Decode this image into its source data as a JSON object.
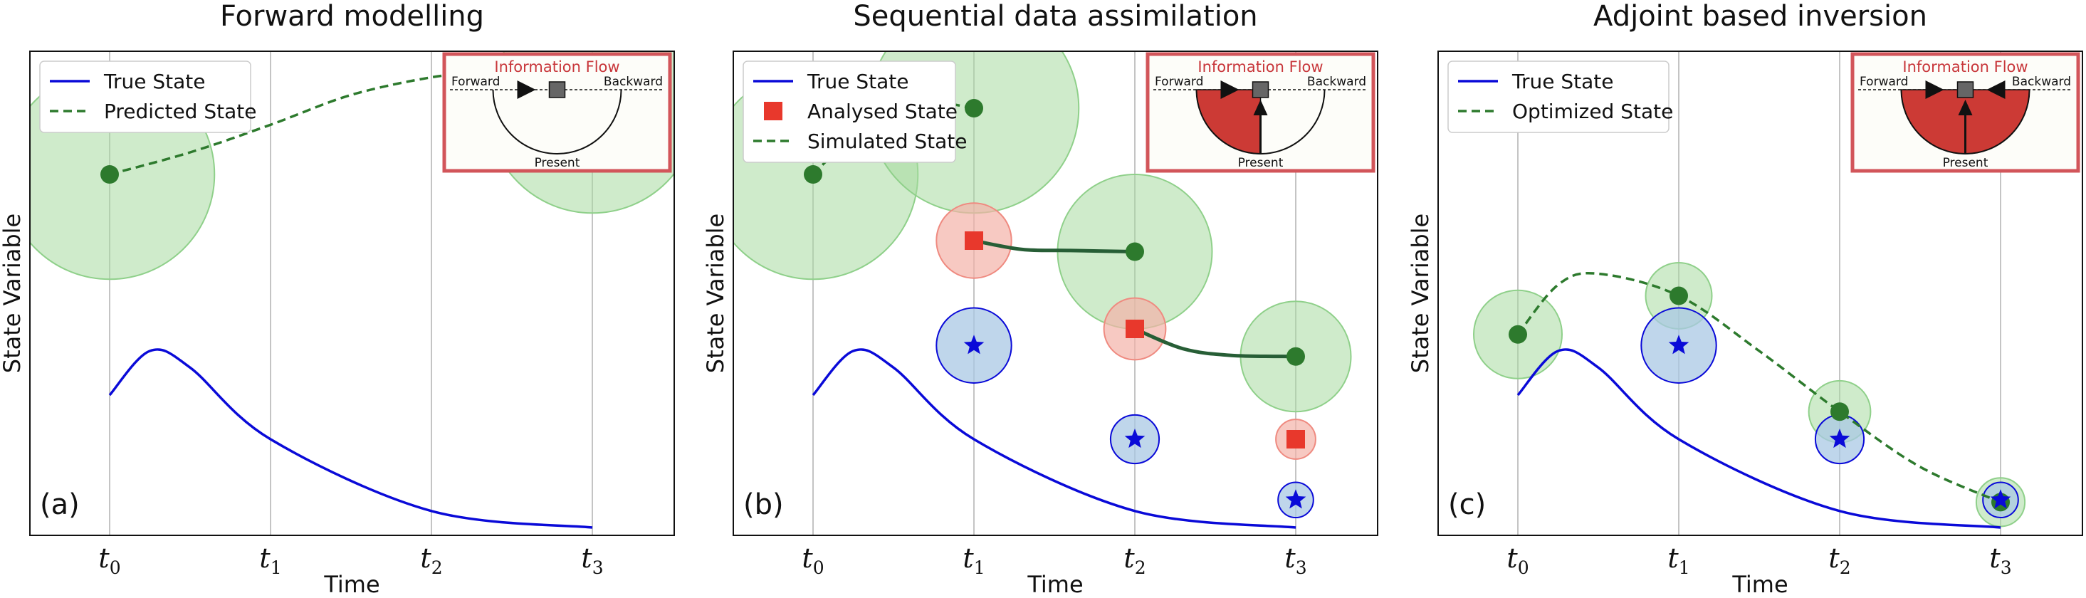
{
  "colors": {
    "true_state": "#0a0ad8",
    "predicted": "#2d7a2d",
    "green_fill": "#a8dba0",
    "blue_fill": "#a9c8e4",
    "red_marker": "#e8382c",
    "red_fill": "#f3b2a8",
    "inset_frame": "#d2555a",
    "inset_fill": "#cc3a35",
    "grid": "#b0b0b0",
    "analysis_link": "#275e36"
  },
  "shared": {
    "xlabel": "Time",
    "ylabel": "State Variable",
    "ticks": [
      {
        "base": "t",
        "sub": "0"
      },
      {
        "base": "t",
        "sub": "1"
      },
      {
        "base": "t",
        "sub": "2"
      },
      {
        "base": "t",
        "sub": "3"
      }
    ],
    "inset": {
      "title": "Information Flow",
      "forward": "Forward",
      "backward": "Backward",
      "present": "Present"
    }
  },
  "panels": [
    {
      "id": "forward",
      "title": "Forward modelling",
      "tag": "(a)",
      "inset_fill": "none",
      "legend": [
        {
          "label": "True State",
          "style": "line"
        },
        {
          "label": "Predicted State",
          "style": "dash"
        }
      ],
      "true_curve": [
        [
          0,
          1.0
        ],
        [
          0.25,
          1.4
        ],
        [
          0.5,
          1.25
        ],
        [
          1,
          0.6
        ],
        [
          2,
          -0.05
        ],
        [
          3,
          -0.2
        ]
      ],
      "sim_curve": [
        [
          0,
          3.0
        ],
        [
          0.5,
          3.2
        ],
        [
          1,
          3.45
        ],
        [
          1.5,
          3.72
        ],
        [
          2,
          3.88
        ],
        [
          2.25,
          3.9
        ],
        [
          2.5,
          3.85
        ],
        [
          3,
          3.6
        ]
      ],
      "green_points": [
        {
          "t": 0,
          "y": 3.0,
          "r": 0.95
        },
        {
          "t": 3,
          "y": 3.6,
          "r": 0.95
        }
      ],
      "blue_points": [],
      "red_points": [],
      "links": []
    },
    {
      "id": "sequential",
      "title": "Sequential data assimilation",
      "tag": "(b)",
      "inset_fill": "half",
      "legend": [
        {
          "label": "True State",
          "style": "line"
        },
        {
          "label": "Analysed State",
          "style": "square"
        },
        {
          "label": "Simulated State",
          "style": "dash"
        }
      ],
      "true_curve": [
        [
          0,
          1.0
        ],
        [
          0.25,
          1.4
        ],
        [
          0.5,
          1.25
        ],
        [
          1,
          0.6
        ],
        [
          2,
          -0.05
        ],
        [
          3,
          -0.2
        ]
      ],
      "sim_curve": [
        [
          0,
          3.0
        ],
        [
          0.25,
          3.35
        ],
        [
          0.5,
          3.58
        ],
        [
          0.75,
          3.65
        ],
        [
          1,
          3.6
        ]
      ],
      "green_points": [
        {
          "t": 0,
          "y": 3.0,
          "r": 0.95
        },
        {
          "t": 1,
          "y": 3.6,
          "r": 0.95
        },
        {
          "t": 2,
          "y": 2.3,
          "r": 0.7
        },
        {
          "t": 3,
          "y": 1.35,
          "r": 0.5
        }
      ],
      "blue_points": [
        {
          "t": 1,
          "y": 1.45,
          "r": 0.34
        },
        {
          "t": 2,
          "y": 0.6,
          "r": 0.22
        },
        {
          "t": 3,
          "y": 0.05,
          "r": 0.16
        }
      ],
      "red_points": [
        {
          "t": 1,
          "y": 2.4,
          "r": 0.34
        },
        {
          "t": 2,
          "y": 1.6,
          "r": 0.28
        },
        {
          "t": 3,
          "y": 0.6,
          "r": 0.18
        }
      ],
      "links": [
        [
          [
            1,
            2.4
          ],
          [
            1.3,
            2.32
          ],
          [
            1.6,
            2.31
          ],
          [
            2,
            2.3
          ]
        ],
        [
          [
            2,
            1.6
          ],
          [
            2.3,
            1.42
          ],
          [
            2.6,
            1.36
          ],
          [
            3,
            1.35
          ]
        ]
      ]
    },
    {
      "id": "adjoint",
      "title": "Adjoint based inversion",
      "tag": "(c)",
      "inset_fill": "full",
      "legend": [
        {
          "label": "True State",
          "style": "line"
        },
        {
          "label": "Optimized State",
          "style": "dash"
        }
      ],
      "true_curve": [
        [
          0,
          1.0
        ],
        [
          0.25,
          1.4
        ],
        [
          0.5,
          1.25
        ],
        [
          1,
          0.6
        ],
        [
          2,
          -0.05
        ],
        [
          3,
          -0.2
        ]
      ],
      "sim_curve": [
        [
          0,
          1.55
        ],
        [
          0.25,
          2.0
        ],
        [
          0.5,
          2.1
        ],
        [
          1,
          1.9
        ],
        [
          1.5,
          1.4
        ],
        [
          2,
          0.85
        ],
        [
          2.5,
          0.35
        ],
        [
          3,
          0.03
        ]
      ],
      "green_points": [
        {
          "t": 0,
          "y": 1.55,
          "r": 0.4
        },
        {
          "t": 1,
          "y": 1.9,
          "r": 0.3
        },
        {
          "t": 2,
          "y": 0.85,
          "r": 0.28
        },
        {
          "t": 3,
          "y": 0.03,
          "r": 0.22
        }
      ],
      "blue_points": [
        {
          "t": 1,
          "y": 1.45,
          "r": 0.34
        },
        {
          "t": 2,
          "y": 0.6,
          "r": 0.22
        },
        {
          "t": 3,
          "y": 0.05,
          "r": 0.16
        }
      ],
      "red_points": [],
      "links": []
    }
  ]
}
